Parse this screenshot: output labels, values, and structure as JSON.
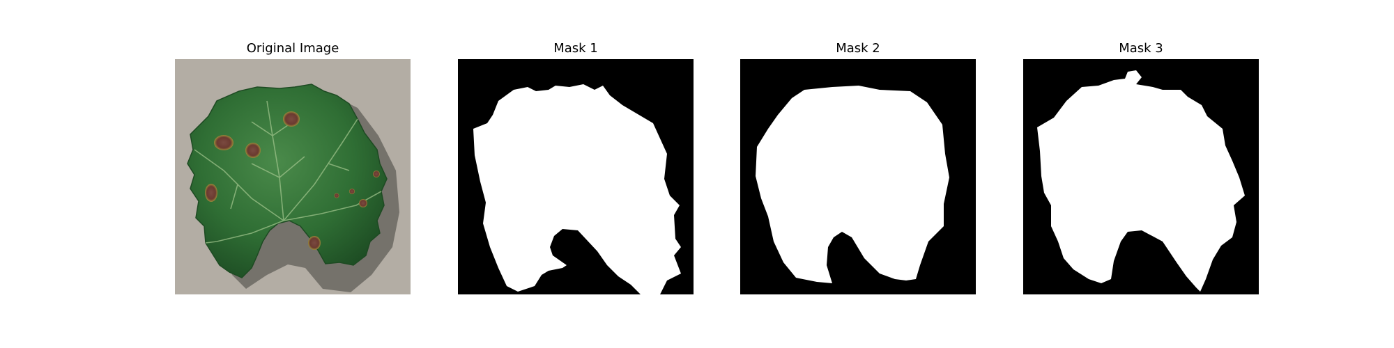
{
  "panels": [
    {
      "title": "Original Image",
      "kind": "photo",
      "subject": "grape leaf with brown lesions"
    },
    {
      "title": "Mask 1",
      "kind": "mask"
    },
    {
      "title": "Mask 2",
      "kind": "mask"
    },
    {
      "title": "Mask 3",
      "kind": "mask"
    }
  ],
  "colors": {
    "background": "#ffffff",
    "mask_foreground": "#ffffff",
    "mask_background": "#000000",
    "leaf_green": "#2f6e34",
    "lesion_brown": "#6b3a30",
    "concrete": "#b8b2aa"
  }
}
